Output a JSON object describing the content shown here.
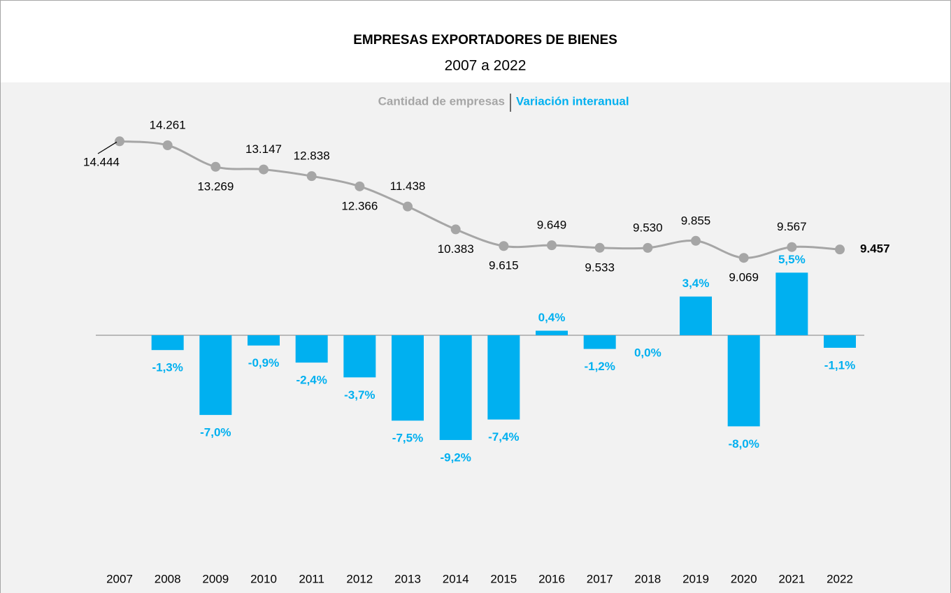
{
  "chart_data": {
    "type": "combo",
    "title": "EMPRESAS EXPORTADORES DE BIENES",
    "subtitle": "2007 a 2022",
    "categories": [
      "2007",
      "2008",
      "2009",
      "2010",
      "2011",
      "2012",
      "2013",
      "2014",
      "2015",
      "2016",
      "2017",
      "2018",
      "2019",
      "2020",
      "2021",
      "2022"
    ],
    "series": [
      {
        "name": "Cantidad de empresas",
        "type": "line",
        "color": "#a6a6a6",
        "axis": "y2",
        "values": [
          14444,
          14261,
          13269,
          13147,
          12838,
          12366,
          11438,
          10383,
          9615,
          9649,
          9533,
          9530,
          9855,
          9069,
          9567,
          9457
        ],
        "value_labels": [
          "14.444",
          "14.261",
          "13.269",
          "13.147",
          "12.838",
          "12.366",
          "11.438",
          "10.383",
          "9.615",
          "9.649",
          "9.533",
          "9.530",
          "9.855",
          "9.069",
          "9.567",
          "9.457"
        ]
      },
      {
        "name": "Variación interanual",
        "type": "bar",
        "color": "#00b0f0",
        "values": [
          null,
          -1.3,
          -7.0,
          -0.9,
          -2.4,
          -3.7,
          -7.5,
          -9.2,
          -7.4,
          0.4,
          -1.2,
          0.0,
          3.4,
          -8.0,
          5.5,
          -1.1
        ],
        "value_labels": [
          null,
          "-1,3%",
          "-7,0%",
          "-0,9%",
          "-2,4%",
          "-3,7%",
          "-7,5%",
          "-9,2%",
          "-7,4%",
          "0,4%",
          "-1,2%",
          "0,0%",
          "3,4%",
          "-8,0%",
          "5,5%",
          "-1,1%"
        ]
      }
    ],
    "ylim": [
      -20,
      20
    ],
    "y2lim": [
      -5000,
      16000
    ]
  }
}
